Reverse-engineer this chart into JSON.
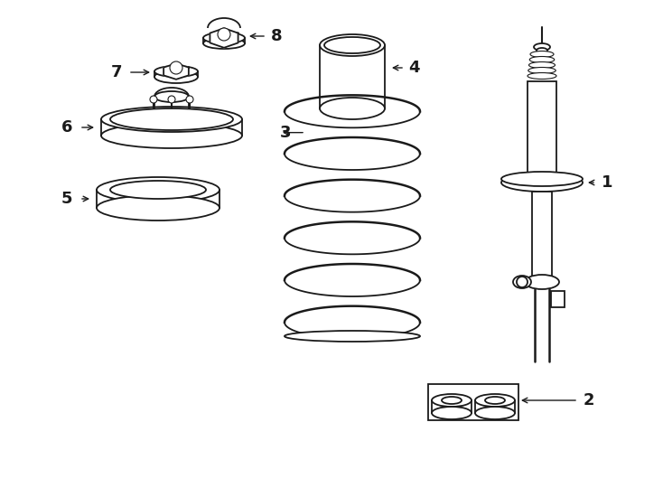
{
  "bg_color": "#ffffff",
  "line_color": "#1a1a1a",
  "figsize": [
    7.34,
    5.4
  ],
  "dpi": 100
}
